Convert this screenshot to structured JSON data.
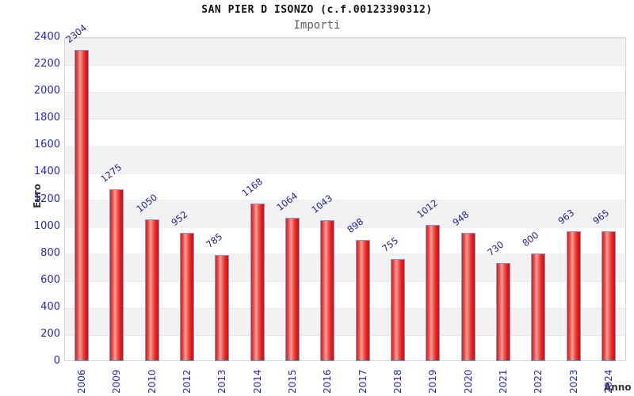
{
  "chart_data": {
    "type": "bar",
    "title": "SAN PIER D ISONZO (c.f.00123390312)",
    "subtitle": "Importi",
    "xlabel": "Anno",
    "ylabel": "Euro",
    "categories": [
      "2006",
      "2009",
      "2010",
      "2012",
      "2013",
      "2014",
      "2015",
      "2016",
      "2017",
      "2018",
      "2019",
      "2020",
      "2021",
      "2022",
      "2023",
      "2024"
    ],
    "values": [
      2304,
      1275,
      1050,
      952,
      785,
      1168,
      1064,
      1043,
      898,
      755,
      1012,
      948,
      730,
      800,
      963,
      965
    ],
    "ylim": [
      0,
      2400
    ],
    "ytick_step": 200,
    "legend_position": "none",
    "grid": "horizontal-bands-every-200",
    "colors": {
      "bar_fill": "#e51616",
      "bar_highlight": "#f5a09a",
      "bar_border": "#5fa8dc",
      "tick_label": "#2424cc",
      "value_label": "#22229e",
      "band_gray": "#f2f2f2",
      "band_white": "#ffffff",
      "plot_border": "#d6d6d6",
      "title": "#111111",
      "subtitle": "#5d5d5d",
      "axis_label": "#333333"
    }
  }
}
